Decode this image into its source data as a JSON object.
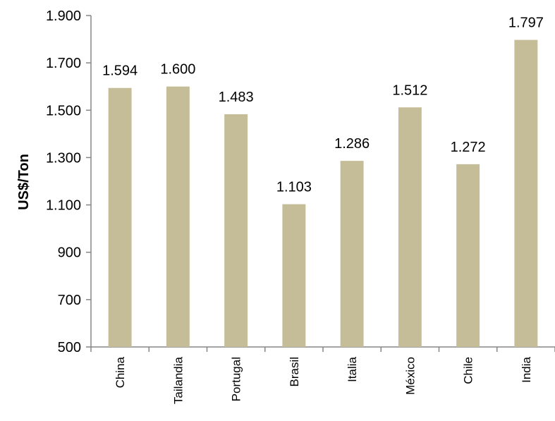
{
  "chart_data": {
    "type": "bar",
    "categories": [
      "China",
      "Tailandia",
      "Portugal",
      "Brasil",
      "Italia",
      "México",
      "Chile",
      "India"
    ],
    "values": [
      1594,
      1600,
      1483,
      1103,
      1286,
      1512,
      1272,
      1797
    ],
    "value_labels": [
      "1.594",
      "1.600",
      "1.483",
      "1.103",
      "1.286",
      "1.512",
      "1.272",
      "1.797"
    ],
    "ylabel": "US$/Ton",
    "ylim": [
      500,
      1900
    ],
    "yticks": [
      500,
      700,
      900,
      1100,
      1300,
      1500,
      1700,
      1900
    ],
    "ytick_labels": [
      "500",
      "700",
      "900",
      "1.100",
      "1.300",
      "1.500",
      "1.700",
      "1.900"
    ],
    "bar_color": "#c4bd97",
    "grid": false,
    "legend": "none"
  }
}
